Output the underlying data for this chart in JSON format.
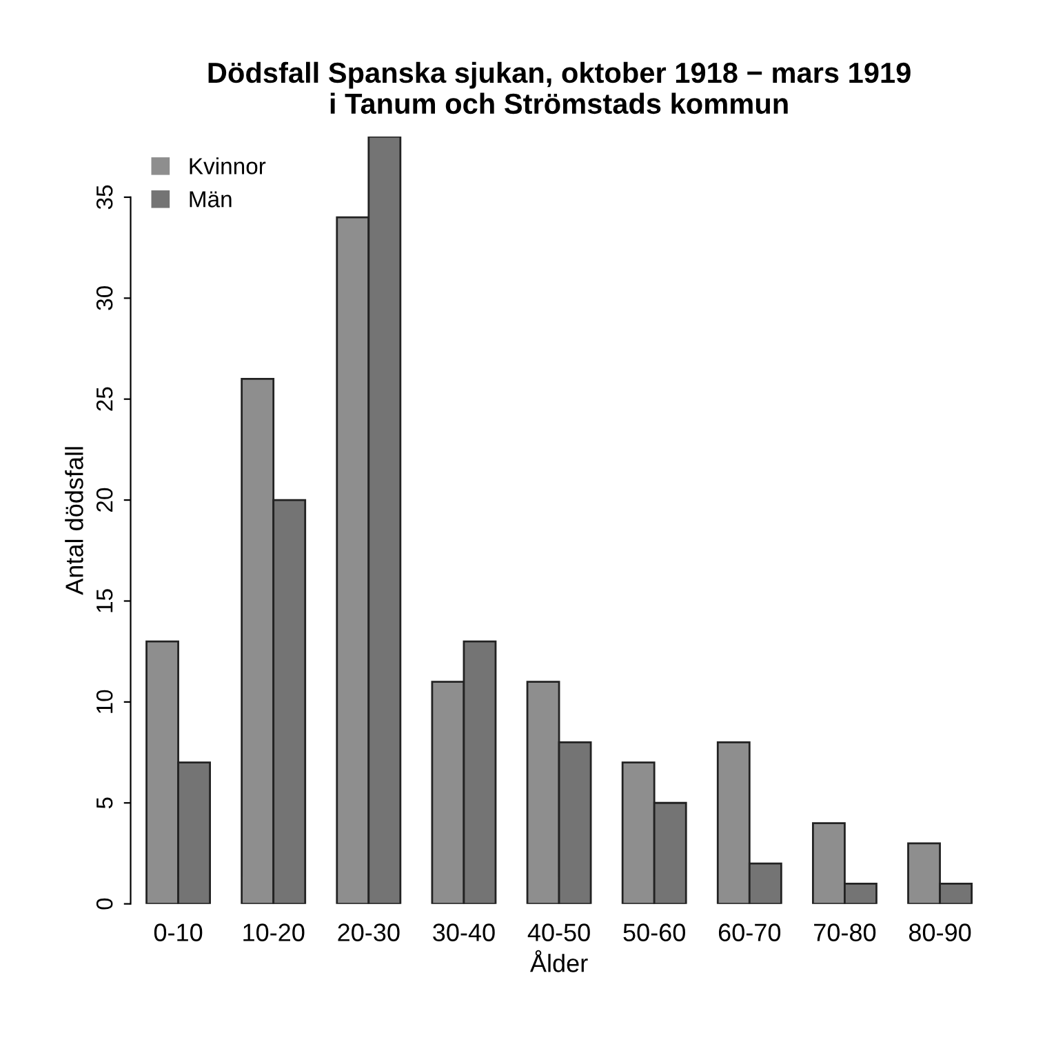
{
  "chart_data": {
    "type": "bar",
    "title": "Dödsfall Spanska sjukan, oktober 1918 − mars 1919\ni Tanum och Strömstads kommun",
    "xlabel": "Ålder",
    "ylabel": "Antal dödsfall",
    "categories": [
      "0-10",
      "10-20",
      "20-30",
      "30-40",
      "40-50",
      "50-60",
      "60-70",
      "70-80",
      "80-90"
    ],
    "series": [
      {
        "name": "Kvinnor",
        "color": "#8e8e8e",
        "values": [
          13,
          26,
          34,
          11,
          11,
          7,
          8,
          4,
          3
        ]
      },
      {
        "name": "Män",
        "color": "#747474",
        "values": [
          7,
          20,
          38,
          13,
          8,
          5,
          2,
          1,
          1
        ]
      }
    ],
    "ylim": [
      0,
      38
    ],
    "yticks": [
      0,
      5,
      10,
      15,
      20,
      25,
      30,
      35
    ],
    "grid": false,
    "legend": "top left"
  }
}
